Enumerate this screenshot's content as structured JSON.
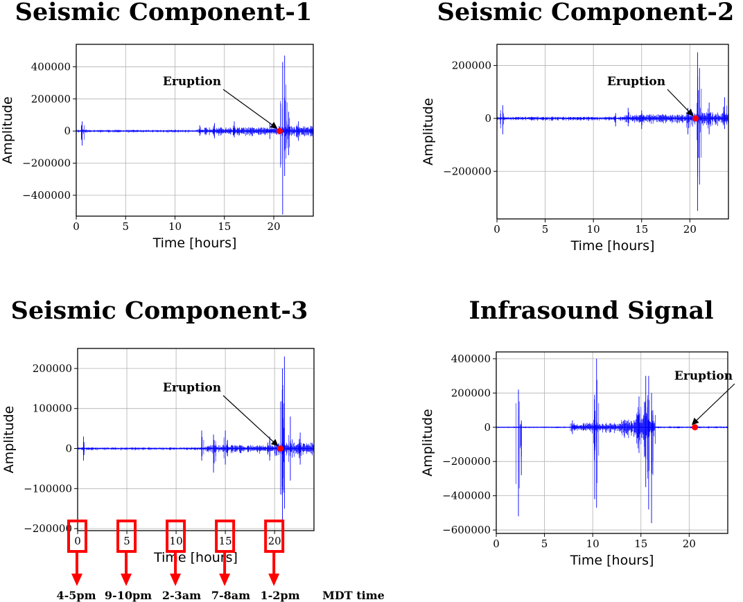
{
  "chart_data": [
    {
      "type": "line",
      "title": "Seismic Component-1",
      "xlabel": "Time [hours]",
      "ylabel": "Amplitude",
      "xlim": [
        0,
        24
      ],
      "ylim": [
        -530000,
        540000
      ],
      "xticks": [
        0,
        5,
        10,
        15,
        20
      ],
      "yticks": [
        -400000,
        -200000,
        0,
        200000,
        400000
      ],
      "ytick_labels": [
        "−400000",
        "−200000",
        "0",
        "200000",
        "400000"
      ],
      "grid": true,
      "series_color": "#0000ff",
      "eruption": {
        "label": "Eruption",
        "x": 20.6,
        "y": 0
      },
      "bursts": [
        {
          "x": 0.6,
          "up": 60000,
          "down": -90000
        },
        {
          "x": 12.5,
          "up": 35000,
          "down": -30000
        },
        {
          "x": 14.0,
          "up": 50000,
          "down": -45000
        },
        {
          "x": 16.0,
          "up": 60000,
          "down": -40000
        },
        {
          "x": 19.6,
          "up": 50000,
          "down": -50000
        },
        {
          "x": 20.9,
          "up": 430000,
          "down": -520000
        },
        {
          "x": 21.1,
          "up": 470000,
          "down": -280000
        },
        {
          "x": 21.5,
          "up": 120000,
          "down": -150000
        },
        {
          "x": 22.5,
          "up": 60000,
          "down": -60000
        },
        {
          "x": 23.8,
          "up": 30000,
          "down": -30000
        }
      ],
      "noise": [
        {
          "x0": 0,
          "x1": 13,
          "amp": 6000
        },
        {
          "x0": 13,
          "x1": 20,
          "amp": 18000
        },
        {
          "x0": 20,
          "x1": 24,
          "amp": 25000
        }
      ]
    },
    {
      "type": "line",
      "title": "Seismic Component-2",
      "xlabel": "Time [hours]",
      "ylabel": "Amplitude",
      "xlim": [
        0,
        24
      ],
      "ylim": [
        -380000,
        280000
      ],
      "xticks": [
        0,
        5,
        10,
        15,
        20
      ],
      "yticks": [
        -200000,
        0,
        200000
      ],
      "ytick_labels": [
        "−200000",
        "0",
        "200000"
      ],
      "grid": true,
      "series_color": "#0000ff",
      "eruption": {
        "label": "Eruption",
        "x": 20.6,
        "y": 0
      },
      "bursts": [
        {
          "x": 0.6,
          "up": 50000,
          "down": -60000
        },
        {
          "x": 12.3,
          "up": 20000,
          "down": -30000
        },
        {
          "x": 13.6,
          "up": 40000,
          "down": -30000
        },
        {
          "x": 15.0,
          "up": 30000,
          "down": -40000
        },
        {
          "x": 19.8,
          "up": 40000,
          "down": -60000
        },
        {
          "x": 20.8,
          "up": 250000,
          "down": -350000
        },
        {
          "x": 21.0,
          "up": 190000,
          "down": -250000
        },
        {
          "x": 22.0,
          "up": 60000,
          "down": -60000
        },
        {
          "x": 23.6,
          "up": 80000,
          "down": -40000
        }
      ],
      "noise": [
        {
          "x0": 0,
          "x1": 13,
          "amp": 5000
        },
        {
          "x0": 13,
          "x1": 20,
          "amp": 12000
        },
        {
          "x0": 20,
          "x1": 24,
          "amp": 18000
        }
      ]
    },
    {
      "type": "line",
      "title": "Seismic Component-3",
      "xlabel": "Time [hours]",
      "ylabel": "Amplitude",
      "xlim": [
        0,
        24
      ],
      "ylim": [
        -205000,
        250000
      ],
      "xticks": [
        0,
        5,
        10,
        15,
        20
      ],
      "yticks": [
        -200000,
        -100000,
        0,
        100000,
        200000
      ],
      "ytick_labels": [
        "−200000",
        "−100000",
        "0",
        "100000",
        "200000"
      ],
      "grid": true,
      "series_color": "#0000ff",
      "eruption": {
        "label": "Eruption",
        "x": 20.6,
        "y": 0
      },
      "bursts": [
        {
          "x": 0.6,
          "up": 30000,
          "down": -30000
        },
        {
          "x": 12.6,
          "up": 45000,
          "down": -30000
        },
        {
          "x": 13.8,
          "up": 35000,
          "down": -60000
        },
        {
          "x": 15.0,
          "up": 45000,
          "down": -40000
        },
        {
          "x": 19.5,
          "up": 30000,
          "down": -30000
        },
        {
          "x": 20.8,
          "up": 200000,
          "down": -195000
        },
        {
          "x": 21.0,
          "up": 230000,
          "down": -150000
        },
        {
          "x": 21.6,
          "up": 80000,
          "down": -80000
        },
        {
          "x": 22.6,
          "up": 40000,
          "down": -40000
        }
      ],
      "noise": [
        {
          "x0": 0,
          "x1": 13,
          "amp": 2500
        },
        {
          "x0": 13,
          "x1": 20,
          "amp": 7000
        },
        {
          "x0": 20,
          "x1": 24,
          "amp": 12000
        }
      ]
    },
    {
      "type": "line",
      "title": "Infrasound Signal",
      "xlabel": "Time [hours]",
      "ylabel": "Amplitude",
      "xlim": [
        0,
        24
      ],
      "ylim": [
        -620000,
        440000
      ],
      "xticks": [
        0,
        5,
        10,
        15,
        20
      ],
      "yticks": [
        -600000,
        -400000,
        -200000,
        0,
        200000,
        400000
      ],
      "ytick_labels": [
        "−600000",
        "−400000",
        "−200000",
        "0",
        "200000",
        "400000"
      ],
      "grid": true,
      "series_color": "#0000ff",
      "eruption": {
        "label": "Eruption",
        "x": 20.6,
        "y": 0
      },
      "bursts": [
        {
          "x": 2.3,
          "up": 220000,
          "down": -520000
        },
        {
          "x": 2.6,
          "up": 40000,
          "down": -280000
        },
        {
          "x": 7.9,
          "up": 40000,
          "down": -40000
        },
        {
          "x": 10.2,
          "up": 190000,
          "down": -420000
        },
        {
          "x": 10.4,
          "up": 400000,
          "down": -470000
        },
        {
          "x": 14.8,
          "up": 180000,
          "down": -150000
        },
        {
          "x": 15.5,
          "up": 300000,
          "down": -350000
        },
        {
          "x": 15.8,
          "up": 300000,
          "down": -480000
        },
        {
          "x": 16.1,
          "up": 200000,
          "down": -560000
        }
      ],
      "noise": [
        {
          "x0": 0,
          "x1": 7.8,
          "amp": 3000
        },
        {
          "x0": 7.8,
          "x1": 13,
          "amp": 20000
        },
        {
          "x0": 13,
          "x1": 14.5,
          "amp": 35000
        },
        {
          "x0": 14.5,
          "x1": 16.5,
          "amp": 70000
        },
        {
          "x0": 16.5,
          "x1": 24,
          "amp": 4000
        }
      ]
    }
  ],
  "time_mapping": {
    "labels": [
      "4-5pm",
      "9-10pm",
      "2-3am",
      "7-8am",
      "1-2pm"
    ],
    "suffix": "MDT time",
    "hours": [
      0,
      5,
      10,
      15,
      20
    ],
    "color": "#ff0000"
  }
}
